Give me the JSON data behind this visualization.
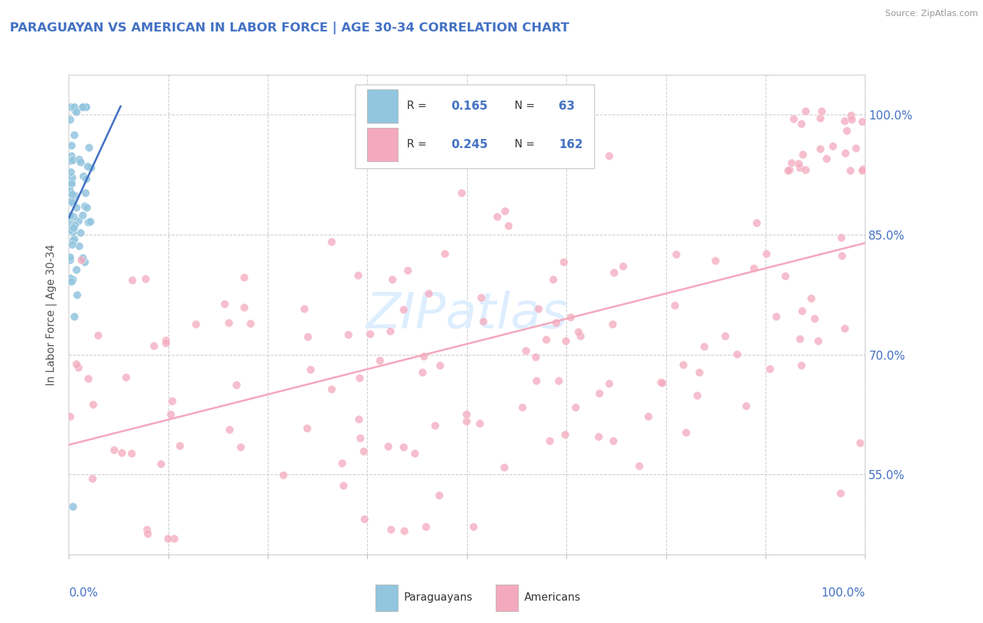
{
  "title": "PARAGUAYAN VS AMERICAN IN LABOR FORCE | AGE 30-34 CORRELATION CHART",
  "source": "Source: ZipAtlas.com",
  "ylabel": "In Labor Force | Age 30-34",
  "ytick_labels": [
    "55.0%",
    "70.0%",
    "85.0%",
    "100.0%"
  ],
  "ytick_values": [
    0.55,
    0.7,
    0.85,
    1.0
  ],
  "xlim": [
    0.0,
    1.0
  ],
  "ylim": [
    0.45,
    1.05
  ],
  "color_paraguayan": "#92c5de",
  "color_american": "#f4a9be",
  "color_title": "#4472c4",
  "color_axis_labels": "#4472c4",
  "color_source": "#999999",
  "trend_color_paraguayan": "#4472c4",
  "trend_color_american": "#f4a9be",
  "background_color": "#ffffff",
  "grid_color": "#cccccc",
  "watermark": "ZIPatlas",
  "watermark_color": "#ddeeff"
}
